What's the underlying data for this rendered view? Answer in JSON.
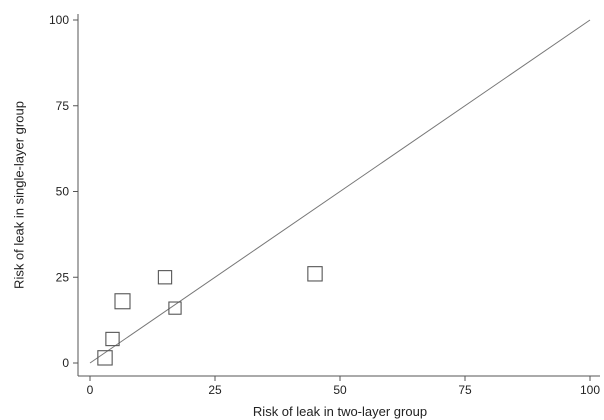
{
  "chart_data": {
    "type": "scatter",
    "xlabel": "Risk of leak in two-layer group",
    "ylabel": "Risk of leak in single-layer group",
    "xlim": [
      0,
      100
    ],
    "ylim": [
      0,
      100
    ],
    "xticks": [
      0,
      25,
      50,
      75,
      100
    ],
    "yticks": [
      0,
      25,
      50,
      75,
      100
    ],
    "grid": false,
    "marker": "hollow-square",
    "reference_line": {
      "x": [
        0,
        100
      ],
      "y": [
        0,
        100
      ]
    },
    "points": [
      {
        "x": 45,
        "y": 26,
        "weight": 0.9
      },
      {
        "x": 15,
        "y": 25,
        "weight": 0.75
      },
      {
        "x": 6.5,
        "y": 18,
        "weight": 1.0
      },
      {
        "x": 17,
        "y": 16,
        "weight": 0.6
      },
      {
        "x": 4.5,
        "y": 7,
        "weight": 0.75
      },
      {
        "x": 3,
        "y": 1.5,
        "weight": 0.9
      }
    ]
  }
}
